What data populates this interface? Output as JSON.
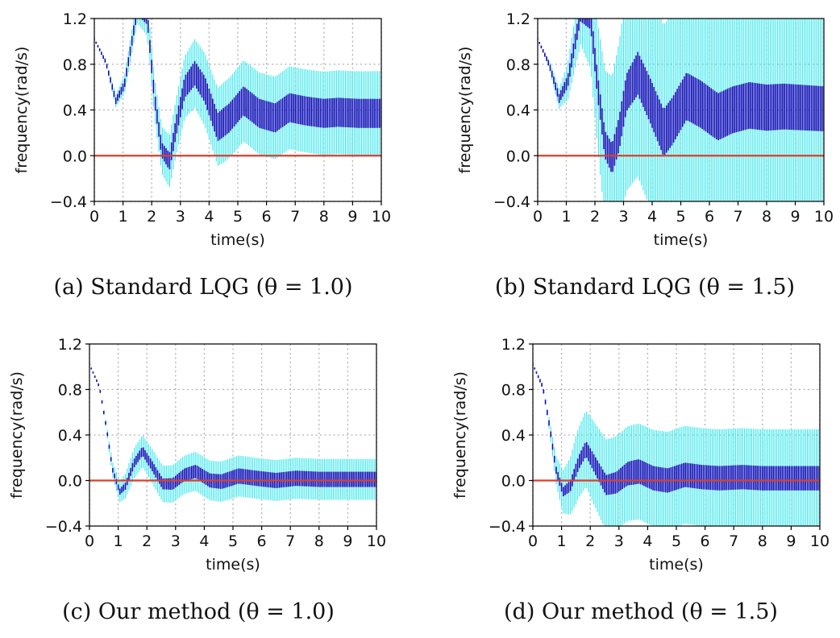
{
  "chart_data": [
    {
      "type": "errorbar",
      "caption": "(a) Standard LQG (θ = 1.0)",
      "xlabel": "time(s)",
      "ylabel": "frequency(rad/s)",
      "xlim": [
        0,
        10
      ],
      "ylim": [
        -0.4,
        1.2
      ],
      "xticks": [
        "0",
        "1",
        "2",
        "3",
        "4",
        "5",
        "6",
        "7",
        "8",
        "9",
        "10"
      ],
      "yticks": [
        "−0.4",
        "0.0",
        "0.4",
        "0.8",
        "1.2"
      ],
      "grid": true,
      "reference": 0.0,
      "mean_knots": [
        [
          0,
          1.02
        ],
        [
          0.4,
          0.82
        ],
        [
          0.75,
          0.48
        ],
        [
          1.05,
          0.62
        ],
        [
          1.5,
          1.28
        ],
        [
          1.85,
          1.2
        ],
        [
          2.1,
          0.5
        ],
        [
          2.35,
          0.05
        ],
        [
          2.62,
          -0.05
        ],
        [
          2.85,
          0.25
        ],
        [
          3.15,
          0.6
        ],
        [
          3.5,
          0.72
        ],
        [
          3.85,
          0.58
        ],
        [
          4.3,
          0.25
        ],
        [
          4.7,
          0.33
        ],
        [
          5.2,
          0.48
        ],
        [
          5.75,
          0.37
        ],
        [
          6.3,
          0.33
        ],
        [
          6.8,
          0.42
        ],
        [
          7.4,
          0.39
        ],
        [
          8,
          0.37
        ],
        [
          8.5,
          0.38
        ],
        [
          9.2,
          0.37
        ],
        [
          10,
          0.37
        ]
      ],
      "inner_halfwidth_knots": [
        [
          0,
          0
        ],
        [
          0.7,
          0.02
        ],
        [
          1.5,
          0.04
        ],
        [
          2.4,
          0.06
        ],
        [
          3.5,
          0.1
        ],
        [
          4.5,
          0.12
        ],
        [
          6,
          0.12
        ],
        [
          10,
          0.12
        ]
      ],
      "outer_halfwidth_knots": [
        [
          0,
          0
        ],
        [
          0.3,
          0.01
        ],
        [
          0.8,
          0.06
        ],
        [
          1.5,
          0.12
        ],
        [
          2.5,
          0.22
        ],
        [
          3.5,
          0.3
        ],
        [
          4.5,
          0.35
        ],
        [
          6,
          0.36
        ],
        [
          10,
          0.37
        ]
      ],
      "colors": {
        "mean_band": "#0a0ab4",
        "outer_band": "#38e6ea",
        "reference": "#d9402a"
      }
    },
    {
      "type": "errorbar",
      "caption": "(b) Standard LQG (θ = 1.5)",
      "xlabel": "time(s)",
      "ylabel": "frequency(rad/s)",
      "xlim": [
        0,
        10
      ],
      "ylim": [
        -0.4,
        1.2
      ],
      "xticks": [
        "0",
        "1",
        "2",
        "3",
        "4",
        "5",
        "6",
        "7",
        "8",
        "9",
        "10"
      ],
      "yticks": [
        "−0.4",
        "0.0",
        "0.4",
        "0.8",
        "1.2"
      ],
      "grid": true,
      "reference": 0.0,
      "mean_knots": [
        [
          0,
          1.02
        ],
        [
          0.4,
          0.8
        ],
        [
          0.75,
          0.5
        ],
        [
          1.05,
          0.65
        ],
        [
          1.5,
          1.25
        ],
        [
          1.85,
          1.2
        ],
        [
          2.1,
          0.6
        ],
        [
          2.35,
          0.1
        ],
        [
          2.6,
          -0.03
        ],
        [
          2.85,
          0.2
        ],
        [
          3.1,
          0.55
        ],
        [
          3.5,
          0.72
        ],
        [
          3.9,
          0.5
        ],
        [
          4.4,
          0.2
        ],
        [
          4.7,
          0.3
        ],
        [
          5.2,
          0.52
        ],
        [
          5.7,
          0.45
        ],
        [
          6.3,
          0.34
        ],
        [
          6.8,
          0.4
        ],
        [
          7.4,
          0.44
        ],
        [
          8,
          0.42
        ],
        [
          8.6,
          0.43
        ],
        [
          9.3,
          0.42
        ],
        [
          10,
          0.41
        ]
      ],
      "inner_halfwidth_knots": [
        [
          0,
          0
        ],
        [
          0.7,
          0.03
        ],
        [
          1.5,
          0.07
        ],
        [
          2.5,
          0.12
        ],
        [
          3.5,
          0.18
        ],
        [
          4.5,
          0.2
        ],
        [
          6,
          0.2
        ],
        [
          10,
          0.19
        ]
      ],
      "outer_halfwidth_knots": [
        [
          0,
          0
        ],
        [
          0.3,
          0.02
        ],
        [
          0.8,
          0.1
        ],
        [
          1.5,
          0.28
        ],
        [
          2.2,
          0.6
        ],
        [
          3,
          0.85
        ],
        [
          4,
          0.95
        ],
        [
          6,
          0.92
        ],
        [
          10,
          0.9
        ]
      ],
      "colors": {
        "mean_band": "#0a0ab4",
        "outer_band": "#38e6ea",
        "reference": "#d9402a"
      }
    },
    {
      "type": "errorbar",
      "caption": "(c) Our method (θ = 1.0)",
      "xlabel": "time(s)",
      "ylabel": "frequency(rad/s)",
      "xlim": [
        0,
        10
      ],
      "ylim": [
        -0.4,
        1.2
      ],
      "xticks": [
        "0",
        "1",
        "2",
        "3",
        "4",
        "5",
        "6",
        "7",
        "8",
        "9",
        "10"
      ],
      "yticks": [
        "−0.4",
        "0.0",
        "0.4",
        "0.8",
        "1.2"
      ],
      "grid": true,
      "reference": 0.0,
      "mean_knots": [
        [
          0,
          1.02
        ],
        [
          0.35,
          0.82
        ],
        [
          0.6,
          0.45
        ],
        [
          0.8,
          0.1
        ],
        [
          1.05,
          -0.1
        ],
        [
          1.25,
          -0.05
        ],
        [
          1.55,
          0.15
        ],
        [
          1.85,
          0.26
        ],
        [
          2.2,
          0.12
        ],
        [
          2.55,
          -0.03
        ],
        [
          2.9,
          -0.03
        ],
        [
          3.3,
          0.05
        ],
        [
          3.7,
          0.08
        ],
        [
          4.2,
          0.0
        ],
        [
          4.6,
          -0.01
        ],
        [
          5.2,
          0.04
        ],
        [
          5.8,
          0.02
        ],
        [
          6.5,
          0.0
        ],
        [
          7.2,
          0.02
        ],
        [
          8,
          0.01
        ],
        [
          9,
          0.01
        ],
        [
          10,
          0.01
        ]
      ],
      "inner_halfwidth_knots": [
        [
          0,
          0
        ],
        [
          0.7,
          0.01
        ],
        [
          1.5,
          0.03
        ],
        [
          2.5,
          0.04
        ],
        [
          3.5,
          0.05
        ],
        [
          5,
          0.06
        ],
        [
          10,
          0.06
        ]
      ],
      "outer_halfwidth_knots": [
        [
          0,
          0
        ],
        [
          0.5,
          0.02
        ],
        [
          0.9,
          0.08
        ],
        [
          1.5,
          0.13
        ],
        [
          2.5,
          0.16
        ],
        [
          3.5,
          0.17
        ],
        [
          5,
          0.18
        ],
        [
          10,
          0.18
        ]
      ],
      "colors": {
        "mean_band": "#0a0ab4",
        "outer_band": "#38e6ea",
        "reference": "#d9402a"
      }
    },
    {
      "type": "errorbar",
      "caption": "(d) Our method (θ = 1.5)",
      "xlabel": "time(s)",
      "ylabel": "frequency(rad/s)",
      "xlim": [
        0,
        10
      ],
      "ylim": [
        -0.4,
        1.2
      ],
      "xticks": [
        "0",
        "1",
        "2",
        "3",
        "4",
        "5",
        "6",
        "7",
        "8",
        "9",
        "10"
      ],
      "yticks": [
        "−0.4",
        "0.0",
        "0.4",
        "0.8",
        "1.2"
      ],
      "grid": true,
      "reference": 0.0,
      "mean_knots": [
        [
          0,
          1.02
        ],
        [
          0.35,
          0.82
        ],
        [
          0.6,
          0.45
        ],
        [
          0.8,
          0.1
        ],
        [
          1.05,
          -0.1
        ],
        [
          1.3,
          -0.05
        ],
        [
          1.6,
          0.16
        ],
        [
          1.85,
          0.28
        ],
        [
          2.2,
          0.12
        ],
        [
          2.55,
          -0.04
        ],
        [
          2.9,
          -0.02
        ],
        [
          3.3,
          0.06
        ],
        [
          3.7,
          0.08
        ],
        [
          4.2,
          0.02
        ],
        [
          4.7,
          0.0
        ],
        [
          5.3,
          0.05
        ],
        [
          5.9,
          0.03
        ],
        [
          6.5,
          0.02
        ],
        [
          7.3,
          0.03
        ],
        [
          8,
          0.02
        ],
        [
          9,
          0.02
        ],
        [
          10,
          0.02
        ]
      ],
      "inner_halfwidth_knots": [
        [
          0,
          0
        ],
        [
          0.7,
          0.02
        ],
        [
          1.5,
          0.05
        ],
        [
          2.5,
          0.08
        ],
        [
          3.5,
          0.1
        ],
        [
          5,
          0.1
        ],
        [
          10,
          0.1
        ]
      ],
      "outer_halfwidth_knots": [
        [
          0,
          0
        ],
        [
          0.5,
          0.03
        ],
        [
          0.9,
          0.15
        ],
        [
          1.5,
          0.3
        ],
        [
          2.5,
          0.4
        ],
        [
          3.5,
          0.42
        ],
        [
          5,
          0.43
        ],
        [
          10,
          0.43
        ]
      ],
      "colors": {
        "mean_band": "#0a0ab4",
        "outer_band": "#38e6ea",
        "reference": "#d9402a"
      }
    }
  ]
}
